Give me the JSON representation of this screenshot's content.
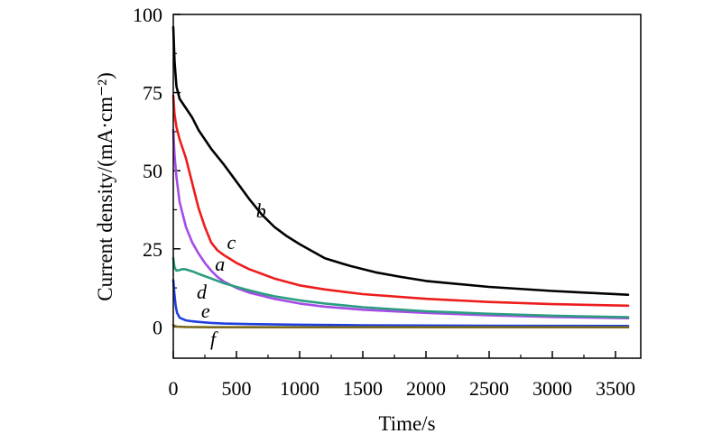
{
  "chart_data": {
    "type": "line",
    "xlabel": "Time/s",
    "ylabel": "Current density/(mA·cm⁻²)",
    "xlim": [
      0,
      3700
    ],
    "ylim": [
      -10,
      100
    ],
    "xticks": [
      0,
      500,
      1000,
      1500,
      2000,
      2500,
      3000,
      3500
    ],
    "xtick_labels": [
      "0",
      "500",
      "1000",
      "1500",
      "2000",
      "2500",
      "3000",
      "3500"
    ],
    "yticks": [
      0,
      25,
      50,
      75,
      100
    ],
    "ytick_labels": [
      "0",
      "25",
      "50",
      "75",
      "100"
    ],
    "grid": false,
    "series": [
      {
        "name": "b",
        "color": "#000000",
        "x": [
          0,
          10,
          25,
          50,
          100,
          150,
          200,
          300,
          400,
          500,
          600,
          700,
          800,
          900,
          1000,
          1200,
          1400,
          1600,
          1800,
          2000,
          2500,
          3000,
          3600
        ],
        "y": [
          96,
          85,
          77,
          73,
          70,
          67,
          63,
          57,
          52,
          46.5,
          41,
          36,
          32,
          29,
          26.5,
          22,
          19.5,
          17.5,
          16,
          14.7,
          12.8,
          11.5,
          10.3
        ]
      },
      {
        "name": "c",
        "color": "#ee1c1c",
        "x": [
          0,
          10,
          25,
          50,
          100,
          150,
          200,
          250,
          300,
          350,
          400,
          500,
          600,
          700,
          800,
          1000,
          1200,
          1500,
          2000,
          2500,
          3000,
          3600
        ],
        "y": [
          74,
          68,
          64,
          60,
          54,
          46,
          38,
          32,
          27,
          24.5,
          23,
          20.5,
          18.5,
          17,
          15.5,
          13.3,
          12,
          10.5,
          9,
          8,
          7.3,
          6.8
        ]
      },
      {
        "name": "a",
        "color": "#a64ce6",
        "x": [
          0,
          10,
          25,
          50,
          100,
          150,
          200,
          250,
          300,
          350,
          400,
          500,
          600,
          700,
          800,
          1000,
          1200,
          1500,
          2000,
          2500,
          3000,
          3600
        ],
        "y": [
          63,
          55,
          48,
          40,
          32,
          27,
          23.5,
          20.5,
          18,
          16,
          14.5,
          12.5,
          11,
          10,
          9,
          7.5,
          6.5,
          5.5,
          4.5,
          3.7,
          3.2,
          2.8
        ]
      },
      {
        "name": "d",
        "color": "#2a9d80",
        "x": [
          0,
          10,
          25,
          50,
          75,
          100,
          150,
          200,
          300,
          400,
          500,
          600,
          700,
          800,
          1000,
          1200,
          1500,
          2000,
          2500,
          3000,
          3600
        ],
        "y": [
          22,
          19,
          18,
          18.2,
          18.5,
          18.4,
          17.8,
          17,
          15.5,
          14,
          12.8,
          11.7,
          10.7,
          9.8,
          8.5,
          7.5,
          6.3,
          5,
          4.2,
          3.6,
          3.1
        ]
      },
      {
        "name": "e",
        "color": "#1f3fe0",
        "x": [
          0,
          10,
          20,
          30,
          50,
          75,
          100,
          150,
          200,
          300,
          400,
          600,
          800,
          1000,
          1500,
          2000,
          2500,
          3000,
          3600
        ],
        "y": [
          15,
          10,
          6.5,
          4.5,
          3,
          2.5,
          2.1,
          1.8,
          1.6,
          1.3,
          1.1,
          0.9,
          0.8,
          0.7,
          0.55,
          0.45,
          0.4,
          0.35,
          0.3
        ]
      },
      {
        "name": "f",
        "color": "#7a6a1c",
        "x": [
          0,
          10,
          30,
          100,
          300,
          600,
          1000,
          2000,
          3000,
          3600
        ],
        "y": [
          0.6,
          0.3,
          0.1,
          0.0,
          -0.1,
          -0.1,
          -0.1,
          -0.1,
          -0.1,
          -0.1
        ]
      }
    ],
    "curve_labels": [
      {
        "text": "b",
        "x": 695,
        "y": 35
      },
      {
        "text": "c",
        "x": 460,
        "y": 25
      },
      {
        "text": "a",
        "x": 370,
        "y": 18
      },
      {
        "text": "d",
        "x": 225,
        "y": 9
      },
      {
        "text": "e",
        "x": 255,
        "y": 3
      },
      {
        "text": "f",
        "x": 315,
        "y": -6
      }
    ]
  }
}
